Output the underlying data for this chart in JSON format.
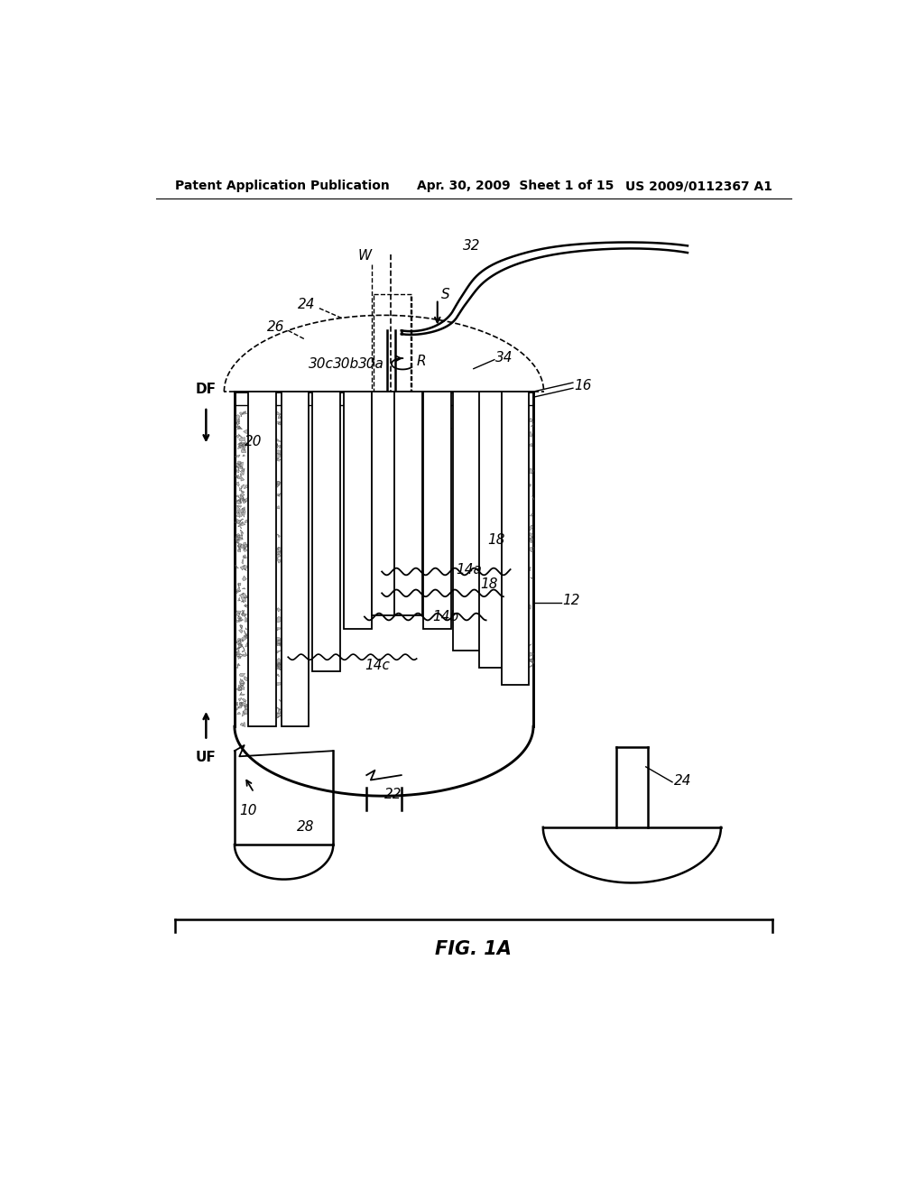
{
  "bg_color": "#ffffff",
  "header_left": "Patent Application Publication",
  "header_center": "Apr. 30, 2009  Sheet 1 of 15",
  "header_right": "US 2009/0112367 A1",
  "footer_label": "FIG. 1A"
}
